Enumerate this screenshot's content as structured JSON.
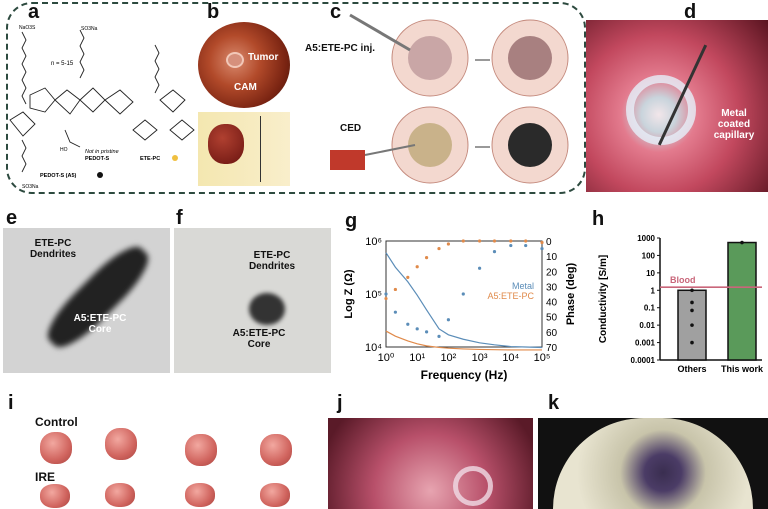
{
  "panels": {
    "a": {
      "label": "a",
      "n_range": "n = 5-15",
      "note": "Not in pristine",
      "note2": "PEDOT-S",
      "pedot": "PEDOT-S (A5)",
      "etepc": "ETE-PC",
      "nao3s": "NaO3S",
      "so3na": "SO3Na",
      "ho": "HO",
      "colors": {
        "pedot": "#111111",
        "etepc": "#f0c040"
      }
    },
    "b": {
      "label": "b",
      "tumor": "Tumor",
      "cam": "CAM"
    },
    "c": {
      "label": "c",
      "inj": "A5:ETE-PC inj.",
      "ced": "CED"
    },
    "d": {
      "label": "d",
      "caption": "Metal coated capillary"
    },
    "e": {
      "label": "e",
      "dendrites": "ETE-PC Dendrites",
      "core": "A5:ETE-PC Core"
    },
    "f": {
      "label": "f",
      "dendrites": "ETE-PC Dendrites",
      "core": "A5:ETE-PC Core"
    },
    "g": {
      "label": "g"
    },
    "h": {
      "label": "h"
    },
    "i": {
      "label": "i",
      "control": "Control",
      "ire": "IRE"
    },
    "j": {
      "label": "j"
    },
    "k": {
      "label": "k"
    }
  },
  "chart_data": [
    {
      "type": "line",
      "panel": "g",
      "xlabel": "Frequency (Hz)",
      "ylabel": "Log Z (Ω)",
      "y2label": "Phase (deg)",
      "x_scale": "log",
      "xlim": [
        1,
        100000
      ],
      "x_ticks": [
        "10⁰",
        "10¹",
        "10²",
        "10³",
        "10⁴",
        "10⁵"
      ],
      "y_scale": "log",
      "ylim": [
        10000,
        1000000
      ],
      "y_ticks": [
        "10⁴",
        "10⁵",
        "10⁶"
      ],
      "y2lim": [
        0,
        70
      ],
      "y2_reversed": true,
      "y2_ticks": [
        "0",
        "10",
        "20",
        "30",
        "40",
        "50",
        "60",
        "70"
      ],
      "legend": [
        "Metal",
        "A5:ETE-PC"
      ],
      "colors": {
        "Metal": "#5b8db8",
        "A5:ETE-PC": "#e08a4a"
      },
      "x": [
        1,
        2,
        5,
        10,
        20,
        50,
        100,
        300,
        1000,
        3000,
        10000,
        30000,
        100000
      ],
      "series": [
        {
          "name": "Metal",
          "kind": "impedance",
          "values": [
            600000,
            320000,
            170000,
            95000,
            50000,
            22000,
            17000,
            14000,
            12000,
            11000,
            10200,
            10000,
            9800
          ]
        },
        {
          "name": "Metal",
          "kind": "phase",
          "values": [
            35,
            47,
            55,
            58,
            60,
            63,
            52,
            35,
            18,
            7,
            3,
            3,
            5
          ]
        },
        {
          "name": "A5:ETE-PC",
          "kind": "impedance",
          "values": [
            20000,
            16000,
            13000,
            11500,
            10500,
            9800,
            9500,
            9200,
            9000,
            8900,
            8800,
            8800,
            8800
          ]
        },
        {
          "name": "A5:ETE-PC",
          "kind": "phase",
          "values": [
            38,
            32,
            24,
            17,
            11,
            5,
            2,
            0,
            0,
            0,
            0,
            0,
            1
          ]
        }
      ]
    },
    {
      "type": "bar",
      "panel": "h",
      "ylabel": "Conductivity [S/m]",
      "y_scale": "log",
      "ylim": [
        0.0001,
        1000
      ],
      "y_ticks": [
        "0.0001",
        "0.001",
        "0.01",
        "0.1",
        "1",
        "10",
        "100",
        "1000"
      ],
      "categories": [
        "Others",
        "This work"
      ],
      "values": [
        1,
        550
      ],
      "colors": [
        "#a0a0a0",
        "#5a9a5a"
      ],
      "points": {
        "Others": [
          1,
          0.2,
          0.07,
          0.01,
          0.001
        ],
        "This work": [
          550
        ]
      },
      "reference_line": {
        "label": "Blood",
        "value": 1.5,
        "color": "#c9667a"
      }
    }
  ]
}
